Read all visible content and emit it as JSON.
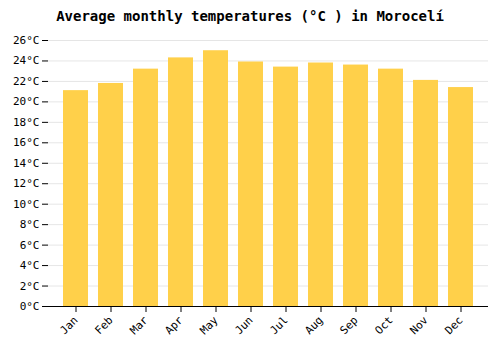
{
  "chart_data": {
    "type": "bar",
    "title": "Average monthly temperatures (°C ) in Morocelí",
    "categories": [
      "Jan",
      "Feb",
      "Mar",
      "Apr",
      "May",
      "Jun",
      "Jul",
      "Aug",
      "Sep",
      "Oct",
      "Nov",
      "Dec"
    ],
    "values": [
      21.1,
      21.8,
      23.2,
      24.3,
      25.0,
      23.9,
      23.4,
      23.8,
      23.6,
      23.2,
      22.1,
      21.4
    ],
    "color": "#FFD04A",
    "ylim": [
      0,
      26
    ],
    "yticks": [
      {
        "value": 0,
        "label": "0°C"
      },
      {
        "value": 2,
        "label": "2°C"
      },
      {
        "value": 4,
        "label": "4°C"
      },
      {
        "value": 6,
        "label": "6°C"
      },
      {
        "value": 8,
        "label": "8°C"
      },
      {
        "value": 10,
        "label": "10°C"
      },
      {
        "value": 12,
        "label": "12°C"
      },
      {
        "value": 14,
        "label": "14°C"
      },
      {
        "value": 16,
        "label": "16°C"
      },
      {
        "value": 18,
        "label": "18°C"
      },
      {
        "value": 20,
        "label": "20°C"
      },
      {
        "value": 22,
        "label": "22°C"
      },
      {
        "value": 24,
        "label": "24°C"
      },
      {
        "value": 26,
        "label": "26°C"
      }
    ],
    "grid": true
  }
}
